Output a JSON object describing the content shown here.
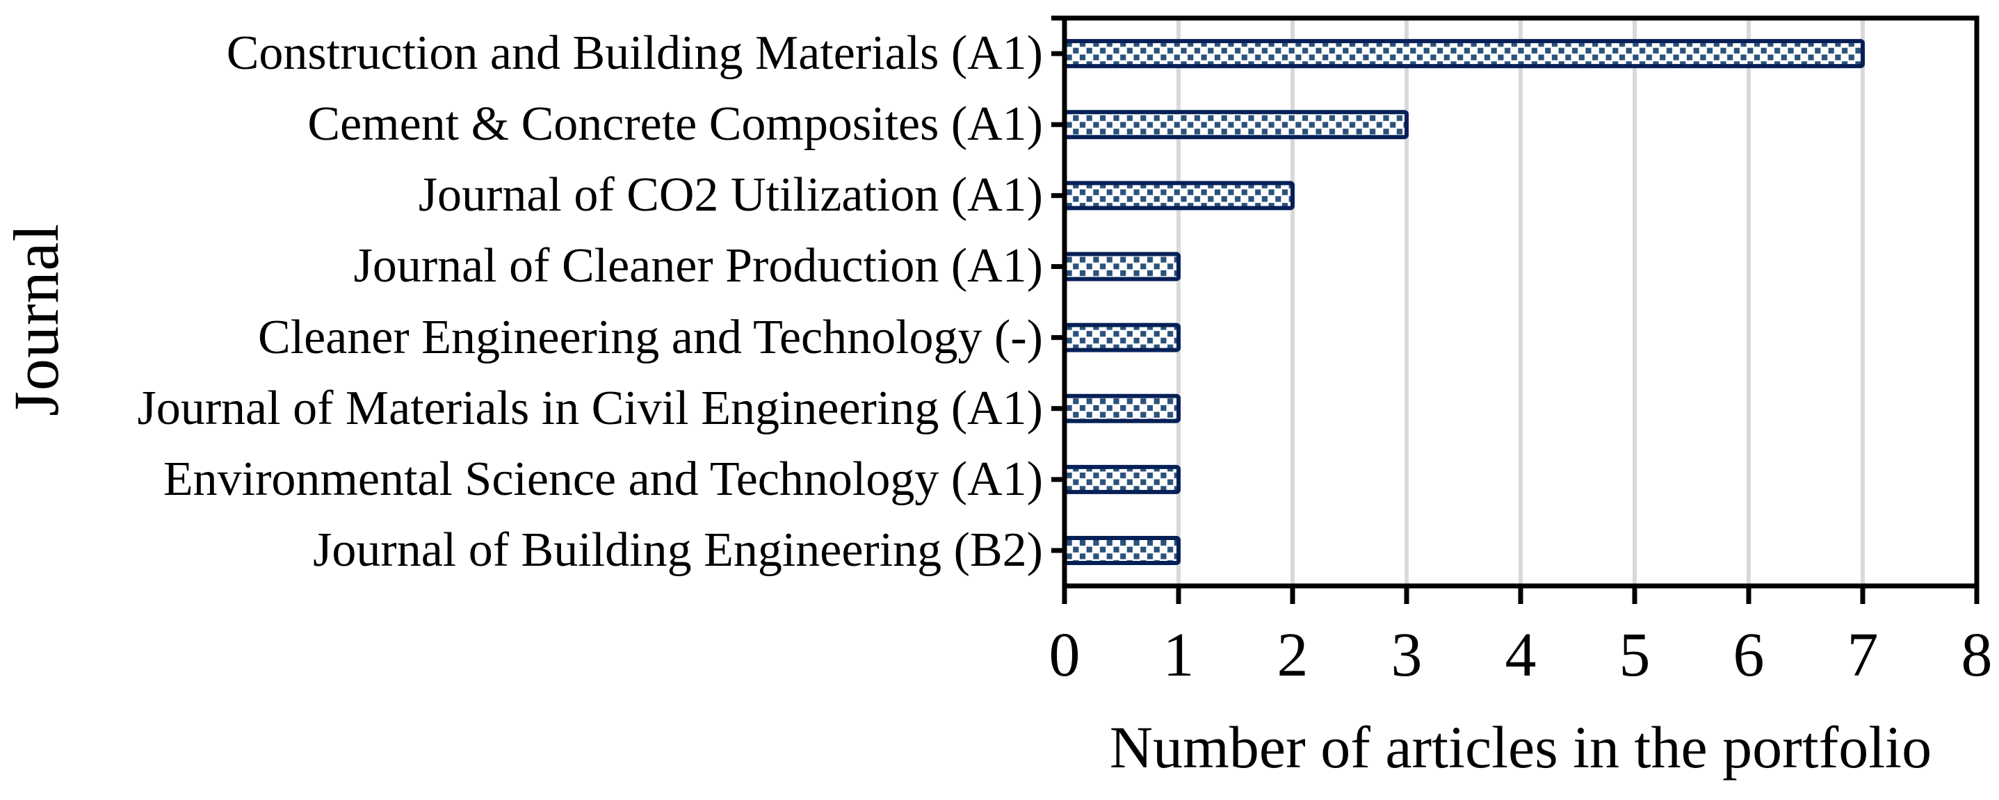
{
  "chart_data": {
    "type": "bar",
    "orientation": "horizontal",
    "title": "",
    "categories": [
      "Construction and Building Materials (A1)",
      "Cement & Concrete Composites (A1)",
      "Journal of CO2 Utilization (A1)",
      "Journal of Cleaner Production (A1)",
      "Cleaner Engineering and Technology (-)",
      "Journal of Materials in Civil Engineering (A1)",
      "Environmental Science and Technology (A1)",
      "Journal of Building Engineering (B2)"
    ],
    "values": [
      7,
      3,
      2,
      1,
      1,
      1,
      1,
      1
    ],
    "xlabel": "Number of articles in the portfolio",
    "ylabel": "Journal",
    "xlim": [
      0,
      8
    ],
    "xticks": [
      0,
      1,
      2,
      3,
      4,
      5,
      6,
      7,
      8
    ],
    "legend": "none",
    "gridlines": "vertical gray gridlines at each integer from 1 to 7, black border at 8",
    "bar_fill_style": "dotted checkerboard pattern (small navy squares on white)",
    "colors": {
      "bar_border": "#062057",
      "bar_pattern_dot": "#2b527a",
      "bar_background": "#ffffff",
      "gridline": "#d9d9d9",
      "axis": "#000000",
      "text": "#000000",
      "page_background": "#ffffff"
    }
  }
}
